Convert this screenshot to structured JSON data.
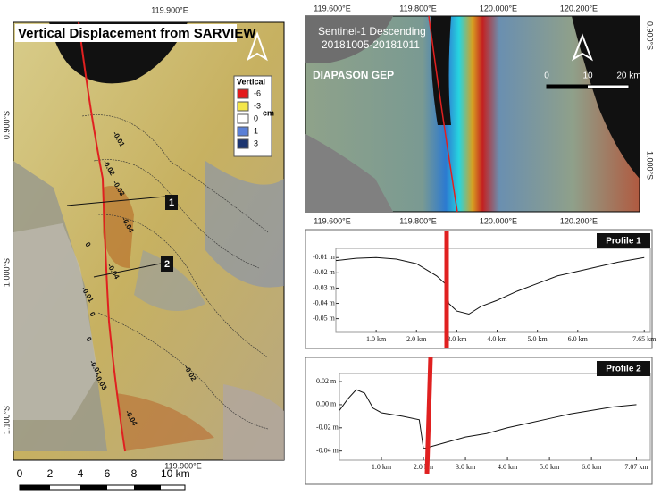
{
  "left_map": {
    "title": "Vertical Displacement from SARVIEW",
    "coords": {
      "top": "119.900°E",
      "bottom": "119.900°E",
      "left": [
        "0.900°S",
        "1.000°S",
        "1.100°S"
      ]
    },
    "legend": {
      "title": "Vertical",
      "unit": "cm",
      "items": [
        {
          "label": "-6",
          "color": "#e31a1c"
        },
        {
          "label": "-3",
          "color": "#f4e64a"
        },
        {
          "label": "0",
          "color": "#ffffff"
        },
        {
          "label": "1",
          "color": "#5a7fd6"
        },
        {
          "label": "3",
          "color": "#1d3570"
        }
      ]
    },
    "contour_labels": [
      "-0.01",
      "-0.02",
      "-0.03",
      "-0.04",
      "0",
      "-0.04",
      "-0.01",
      "0",
      "0",
      "-0.01",
      "-0.03",
      "-0.02",
      "-0.04"
    ],
    "profile_markers": [
      "1",
      "2"
    ],
    "scale_bar": [
      "0",
      "2",
      "4",
      "6",
      "8",
      "10 km"
    ]
  },
  "right_map": {
    "subtitle": "Sentinel-1 Descending",
    "dates": "20181005-20181011",
    "source": "DIAPASON GEP",
    "coords": {
      "top": [
        "119.600°E",
        "119.800°E",
        "120.000°E",
        "120.200°E"
      ],
      "bottom": [
        "119.600°E",
        "119.800°E",
        "120.000°E",
        "120.200°E"
      ],
      "right": [
        "0.900°S",
        "1.000°S"
      ]
    },
    "scale_bar": [
      "0",
      "10",
      "20 km"
    ]
  },
  "chart_data": [
    {
      "type": "line",
      "title": "Profile 1",
      "color": "#111111",
      "x": [
        0,
        0.5,
        1.0,
        1.5,
        2.0,
        2.5,
        2.75,
        2.8,
        3.0,
        3.3,
        3.6,
        4.0,
        4.5,
        5.0,
        5.5,
        6.0,
        6.5,
        7.0,
        7.65
      ],
      "values": [
        -0.012,
        -0.0105,
        -0.01,
        -0.011,
        -0.014,
        -0.022,
        -0.028,
        -0.04,
        -0.045,
        -0.047,
        -0.042,
        -0.038,
        -0.032,
        -0.027,
        -0.022,
        -0.019,
        -0.016,
        -0.013,
        -0.01
      ],
      "xlim": [
        0,
        7.8
      ],
      "ylim": [
        -0.059,
        -0.004
      ],
      "xticks": [
        {
          "value": 1,
          "label": "1.0 km"
        },
        {
          "value": 2,
          "label": "2.0 km"
        },
        {
          "value": 3,
          "label": "3.0 km"
        },
        {
          "value": 4,
          "label": "4.0 km"
        },
        {
          "value": 5,
          "label": "5.0 km"
        },
        {
          "value": 6,
          "label": "6.0 km"
        },
        {
          "value": 7.65,
          "label": "7.65 km"
        }
      ],
      "yticks": [
        {
          "value": -0.01,
          "label": "-0.01 m"
        },
        {
          "value": -0.02,
          "label": "-0.02 m"
        },
        {
          "value": -0.03,
          "label": "-0.03 m"
        },
        {
          "value": -0.04,
          "label": "-0.04 m"
        },
        {
          "value": -0.05,
          "label": "-0.05 m"
        }
      ]
    },
    {
      "type": "line",
      "title": "Profile 2",
      "color": "#111111",
      "x": [
        0,
        0.2,
        0.4,
        0.6,
        0.8,
        1.0,
        1.5,
        1.9,
        2.0,
        2.5,
        3.0,
        3.5,
        4.0,
        4.5,
        5.0,
        5.5,
        6.0,
        6.5,
        7.07
      ],
      "values": [
        -0.005,
        0.005,
        0.013,
        0.01,
        -0.003,
        -0.007,
        -0.01,
        -0.013,
        -0.038,
        -0.033,
        -0.028,
        -0.025,
        -0.02,
        -0.016,
        -0.012,
        -0.008,
        -0.005,
        -0.002,
        0.0
      ],
      "xlim": [
        0,
        7.4
      ],
      "ylim": [
        -0.048,
        0.027
      ],
      "xticks": [
        {
          "value": 1,
          "label": "1.0 km"
        },
        {
          "value": 2,
          "label": "2.0 km"
        },
        {
          "value": 3,
          "label": "3.0 km"
        },
        {
          "value": 4,
          "label": "4.0 km"
        },
        {
          "value": 5,
          "label": "5.0 km"
        },
        {
          "value": 6,
          "label": "6.0 km"
        },
        {
          "value": 7.07,
          "label": "7.07 km"
        }
      ],
      "yticks": [
        {
          "value": 0.02,
          "label": "0.02 m"
        },
        {
          "value": 0,
          "label": "0.00 m"
        },
        {
          "value": -0.02,
          "label": "-0.02 m"
        },
        {
          "value": -0.04,
          "label": "-0.04 m"
        }
      ]
    }
  ]
}
